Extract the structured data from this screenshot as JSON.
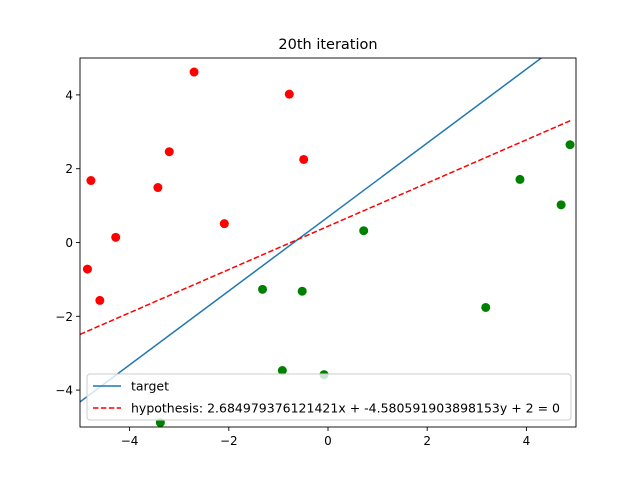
{
  "chart_data": {
    "type": "scatter",
    "title": "20th iteration",
    "xlabel": "",
    "ylabel": "",
    "xlim": [
      -5,
      5
    ],
    "ylim": [
      -5,
      5
    ],
    "xticks": [
      -4,
      -2,
      0,
      2,
      4
    ],
    "yticks": [
      -4,
      -2,
      0,
      2,
      4
    ],
    "xtick_labels": [
      "−4",
      "−2",
      "0",
      "2",
      "4"
    ],
    "ytick_labels": [
      "−4",
      "−2",
      "0",
      "2",
      "4"
    ],
    "grid": false,
    "legend_position": "lower-right",
    "series": [
      {
        "kind": "points",
        "color": "#ff0000",
        "points": [
          [
            -4.85,
            -0.72
          ],
          [
            -4.78,
            1.68
          ],
          [
            -4.6,
            -1.57
          ],
          [
            -4.28,
            0.14
          ],
          [
            -3.43,
            1.49
          ],
          [
            -3.2,
            2.46
          ],
          [
            -2.7,
            4.62
          ],
          [
            -2.09,
            0.51
          ],
          [
            -0.78,
            4.02
          ],
          [
            -0.49,
            2.25
          ]
        ]
      },
      {
        "kind": "points",
        "color": "#008000",
        "points": [
          [
            -3.38,
            -4.88
          ],
          [
            -1.32,
            -1.27
          ],
          [
            -0.92,
            -3.47
          ],
          [
            -0.52,
            -1.32
          ],
          [
            -0.08,
            -3.58
          ],
          [
            0.72,
            0.32
          ],
          [
            3.18,
            -1.76
          ],
          [
            3.87,
            1.71
          ],
          [
            4.7,
            1.02
          ],
          [
            4.88,
            2.65
          ]
        ]
      },
      {
        "kind": "line",
        "name": "target",
        "color": "#1f77b4",
        "style": "solid",
        "x": [
          -5,
          4.3
        ],
        "y": [
          -4.32,
          5.0
        ]
      },
      {
        "kind": "line",
        "name": "hypothesis: 2.684979376121421x + -4.580591903898153y + 2 = 0",
        "color": "#ff0000",
        "style": "dashed",
        "x": [
          -5,
          4.9
        ],
        "y": [
          -2.49,
          3.31
        ]
      }
    ]
  }
}
